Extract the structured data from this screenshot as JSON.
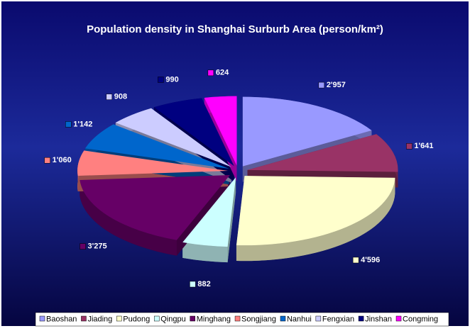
{
  "chart_data": {
    "type": "pie3d",
    "title": "Population density in Shanghai Surburb Area (person/km²)",
    "categories": [
      "Baoshan",
      "Jiading",
      "Pudong",
      "Qingpu",
      "Minghang",
      "Songjiang",
      "Nanhui",
      "Fengxian",
      "Jinshan",
      "Congming"
    ],
    "values": [
      2957,
      1641,
      4596,
      882,
      3275,
      1060,
      1142,
      908,
      990,
      624
    ],
    "value_labels": [
      "2'957",
      "1'641",
      "4'596",
      "882",
      "3'275",
      "1'060",
      "1'142",
      "908",
      "990",
      "624"
    ],
    "colors": [
      "#9999ff",
      "#993366",
      "#ffffcc",
      "#ccffff",
      "#660066",
      "#ff8080",
      "#0066cc",
      "#ccccff",
      "#000080",
      "#ff00ff"
    ],
    "legend": "bottom"
  }
}
